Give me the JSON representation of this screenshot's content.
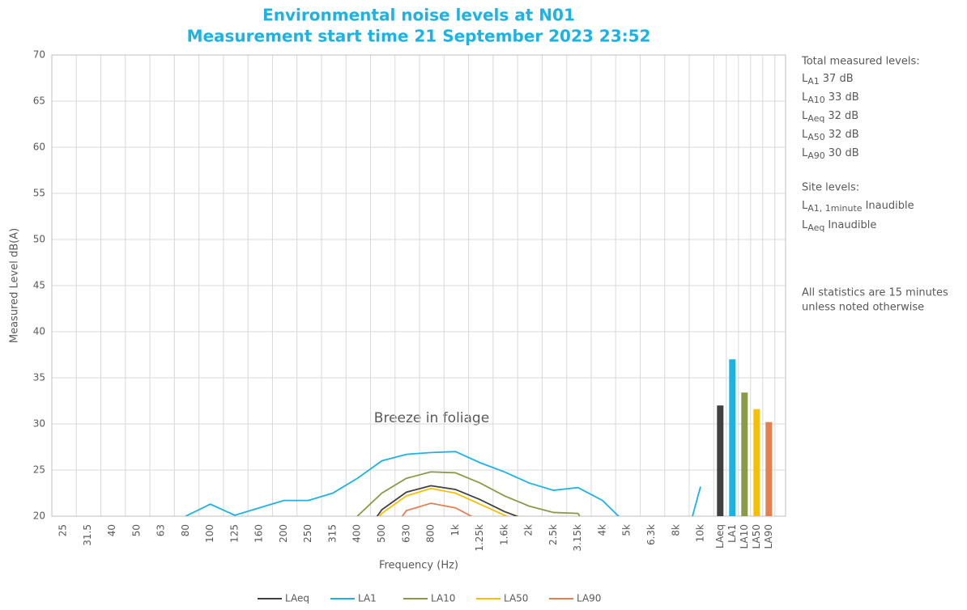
{
  "chart_data": {
    "type": "line",
    "title": [
      "Environmental noise levels at N01",
      "Measurement start time 21 September 2023 23:52"
    ],
    "x_label": "Frequency (Hz)",
    "y_label": "Measured Level dB(A)",
    "categories": [
      "25",
      "31.5",
      "40",
      "50",
      "63",
      "80",
      "100",
      "125",
      "160",
      "200",
      "250",
      "315",
      "400",
      "500",
      "630",
      "800",
      "1k",
      "1.25k",
      "1.6k",
      "2k",
      "2.5k",
      "3.15k",
      "4k",
      "5k",
      "6.3k",
      "8k",
      "10k"
    ],
    "series": [
      {
        "name": "LAeq",
        "color": "#404040",
        "values": [
          null,
          null,
          null,
          null,
          null,
          null,
          null,
          null,
          null,
          null,
          null,
          null,
          17,
          20.7,
          22.6,
          23.3,
          22.9,
          21.8,
          20.5,
          19.5,
          null,
          null,
          null,
          null,
          null,
          null,
          null
        ]
      },
      {
        "name": "LA1",
        "color": "#1cb3e4",
        "values": [
          null,
          null,
          null,
          null,
          null,
          20,
          21.3,
          20.1,
          20.9,
          21.7,
          21.7,
          22.5,
          24.1,
          26.0,
          26.7,
          26.9,
          27.0,
          25.8,
          24.8,
          23.6,
          22.8,
          23.1,
          21.7,
          19.1,
          null,
          13.5,
          23.2
        ]
      },
      {
        "name": "LA10",
        "color": "#8a9a48",
        "values": [
          null,
          null,
          null,
          null,
          null,
          null,
          null,
          null,
          null,
          null,
          null,
          null,
          20,
          22.5,
          24.1,
          24.8,
          24.7,
          23.6,
          22.2,
          21.1,
          20.4,
          20.3,
          16,
          null,
          null,
          null,
          null
        ]
      },
      {
        "name": "LA50",
        "color": "#f5c000",
        "values": [
          null,
          null,
          null,
          null,
          null,
          null,
          null,
          null,
          null,
          null,
          null,
          null,
          17,
          20.3,
          22.2,
          23.0,
          22.5,
          21.3,
          20.1,
          19.2,
          null,
          null,
          null,
          null,
          null,
          null,
          null
        ]
      },
      {
        "name": "LA90",
        "color": "#e3804f",
        "values": [
          null,
          null,
          null,
          null,
          null,
          null,
          null,
          null,
          null,
          null,
          null,
          null,
          null,
          17,
          20.6,
          21.4,
          20.9,
          19.5,
          null,
          null,
          null,
          null,
          null,
          null,
          null,
          null,
          null
        ]
      }
    ],
    "bar_categories": [
      "LAeq",
      "LA1",
      "LA10",
      "LA50",
      "LA90"
    ],
    "bar_values": [
      32.0,
      37.0,
      33.4,
      31.6,
      30.2
    ],
    "ylim": [
      20,
      70
    ],
    "yticks": [
      20,
      25,
      30,
      35,
      40,
      45,
      50,
      55,
      60,
      65,
      70
    ],
    "grid": true,
    "annotation": "Breeze in foliage",
    "side_notes": {
      "total_heading": "Total measured levels:",
      "totals": [
        {
          "symbol": "L",
          "sub": "A1",
          "value": "37 dB"
        },
        {
          "symbol": "L",
          "sub": "A10",
          "value": "33 dB"
        },
        {
          "symbol": "L",
          "sub": "Aeq",
          "value": "32 dB"
        },
        {
          "symbol": "L",
          "sub": "A50",
          "value": "32 dB"
        },
        {
          "symbol": "L",
          "sub": "A90",
          "value": "30 dB"
        }
      ],
      "site_heading": "Site levels:",
      "site": [
        {
          "symbol": "L",
          "sub": "A1, 1minute",
          "value": "Inaudible"
        },
        {
          "symbol": "L",
          "sub": "Aeq",
          "value": "Inaudible"
        }
      ],
      "footnote": [
        "All statistics are 15 minutes",
        "unless noted otherwise"
      ]
    }
  }
}
